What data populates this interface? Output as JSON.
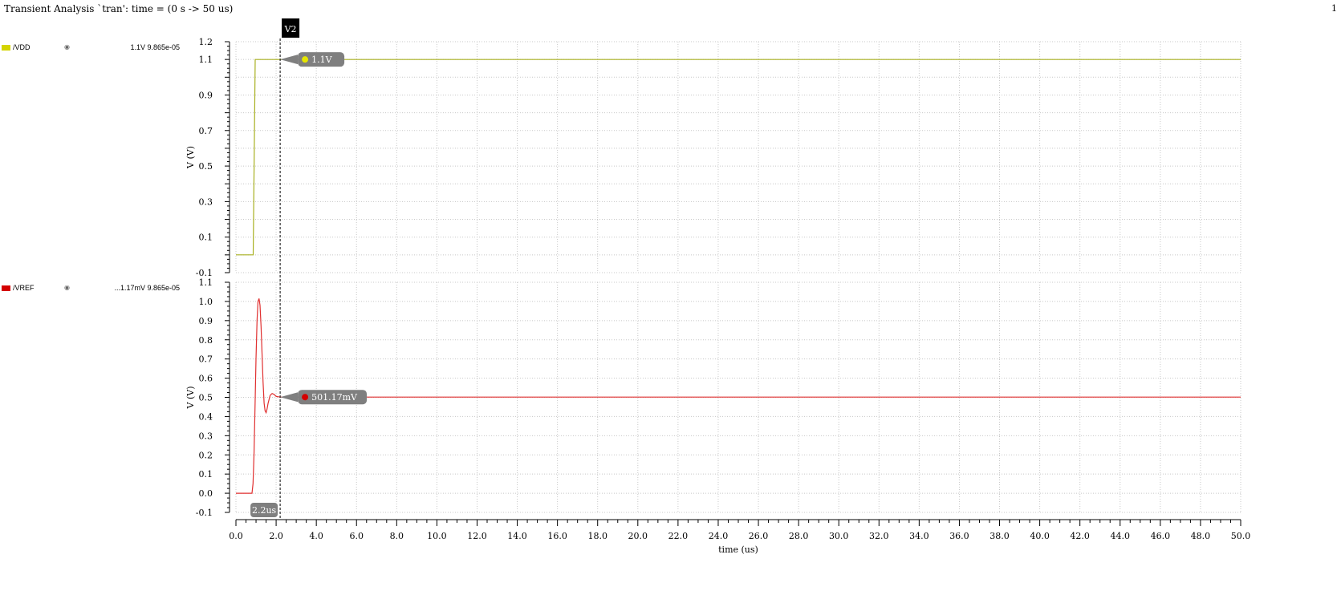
{
  "title": "Transient Analysis `tran': time = (0 s -> 50 us)",
  "page_number": "1",
  "legend": [
    {
      "name": "/VDD",
      "readout": "1.1V 9.865e-05",
      "color": "#d4d400",
      "eye_icon": "eye-icon"
    },
    {
      "name": "/VREF",
      "readout": "...1.17mV 9.865e-05",
      "color": "#d40000",
      "eye_icon": "eye-icon"
    }
  ],
  "marker": {
    "label": "V2",
    "time_label": "2.2us",
    "x": 2.2
  },
  "chart_data": [
    {
      "type": "line",
      "series": [
        {
          "name": "/VDD",
          "color": "#a8b020",
          "points": [
            [
              0,
              0
            ],
            [
              0.86,
              0
            ],
            [
              0.96,
              1.1
            ],
            [
              50,
              1.1
            ]
          ]
        }
      ],
      "xlim": [
        0,
        50
      ],
      "ylim": [
        -0.1,
        1.2
      ],
      "yticks": [
        -0.1,
        0.1,
        0.3,
        0.5,
        0.7,
        0.9,
        1.1,
        1.2
      ],
      "ytick_labels": [
        "-0.1",
        "0.1",
        "0.3",
        "0.5",
        "0.7",
        "0.9",
        "1.1",
        "1.2"
      ],
      "ylabel": "V (V)",
      "marker_value": {
        "y": 1.1,
        "label": "1.1V",
        "dot_color": "#e6e600"
      }
    },
    {
      "type": "line",
      "series": [
        {
          "name": "/VREF",
          "color": "#e03030",
          "points": [
            [
              0,
              0
            ],
            [
              0.8,
              0
            ],
            [
              0.85,
              0.05
            ],
            [
              0.9,
              0.2
            ],
            [
              0.95,
              0.45
            ],
            [
              1.0,
              0.7
            ],
            [
              1.05,
              0.9
            ],
            [
              1.1,
              1.0
            ],
            [
              1.15,
              1.015
            ],
            [
              1.2,
              0.98
            ],
            [
              1.25,
              0.87
            ],
            [
              1.3,
              0.72
            ],
            [
              1.35,
              0.58
            ],
            [
              1.4,
              0.47
            ],
            [
              1.45,
              0.43
            ],
            [
              1.5,
              0.42
            ],
            [
              1.55,
              0.44
            ],
            [
              1.6,
              0.47
            ],
            [
              1.7,
              0.51
            ],
            [
              1.8,
              0.52
            ],
            [
              1.9,
              0.515
            ],
            [
              2.0,
              0.505
            ],
            [
              2.2,
              0.5012
            ],
            [
              50,
              0.5012
            ]
          ]
        }
      ],
      "xlim": [
        0,
        50
      ],
      "ylim": [
        -0.1,
        1.1
      ],
      "yticks": [
        -0.1,
        0.0,
        0.1,
        0.2,
        0.3,
        0.4,
        0.5,
        0.6,
        0.7,
        0.8,
        0.9,
        1.0,
        1.1
      ],
      "ytick_labels": [
        "-0.1",
        "0.0",
        "0.1",
        "0.2",
        "0.3",
        "0.4",
        "0.5",
        "0.6",
        "0.7",
        "0.8",
        "0.9",
        "1.0",
        "1.1"
      ],
      "ylabel": "V (V)",
      "marker_value": {
        "y": 0.5012,
        "label": "501.17mV",
        "dot_color": "#d40000"
      }
    }
  ],
  "x_axis": {
    "label": "time (us)",
    "ticks": [
      0,
      2,
      4,
      6,
      8,
      10,
      12,
      14,
      16,
      18,
      20,
      22,
      24,
      26,
      28,
      30,
      32,
      34,
      36,
      38,
      40,
      42,
      44,
      46,
      48,
      50
    ],
    "tick_labels": [
      "0.0",
      "2.0",
      "4.0",
      "6.0",
      "8.0",
      "10.0",
      "12.0",
      "14.0",
      "16.0",
      "18.0",
      "20.0",
      "22.0",
      "24.0",
      "26.0",
      "28.0",
      "30.0",
      "32.0",
      "34.0",
      "36.0",
      "38.0",
      "40.0",
      "42.0",
      "44.0",
      "46.0",
      "48.0",
      "50.0"
    ]
  }
}
